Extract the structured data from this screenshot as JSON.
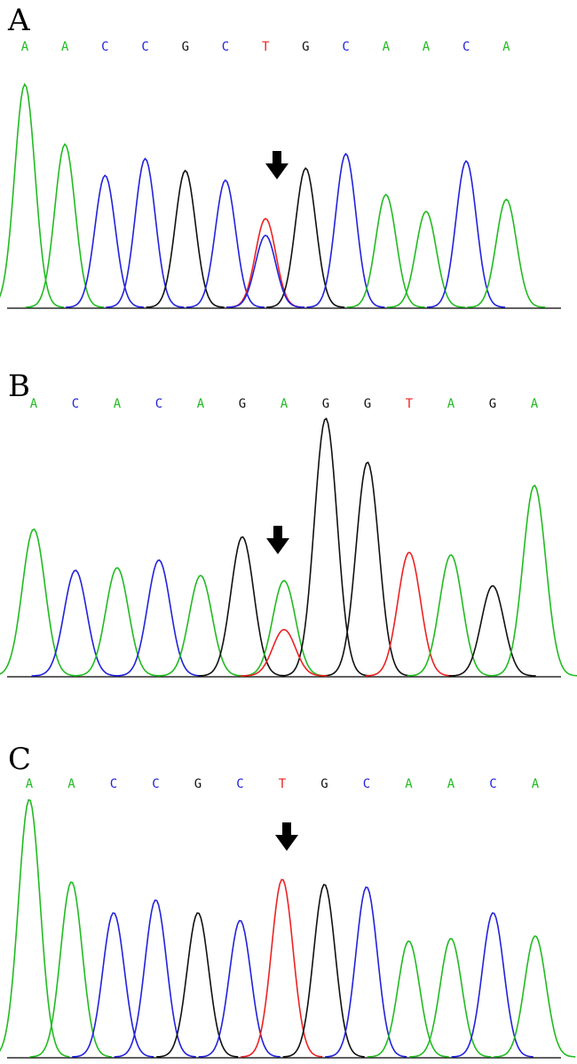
{
  "colors": {
    "A": "#22bb22",
    "C": "#2222dd",
    "G": "#111111",
    "T": "#ee2222"
  },
  "panels": [
    {
      "label": "A",
      "sequence": [
        "A",
        "A",
        "C",
        "C",
        "G",
        "C",
        "T",
        "G",
        "C",
        "A",
        "A",
        "C",
        "A"
      ],
      "mutation_index": 6,
      "peak_heights": [
        0.93,
        0.68,
        0.55,
        0.62,
        0.57,
        0.53,
        0.37,
        0.58,
        0.64,
        0.47,
        0.4,
        0.61,
        0.45
      ],
      "secondary_peak": {
        "base": "C",
        "index": 6,
        "height": 0.3
      }
    },
    {
      "label": "B",
      "sequence": [
        "A",
        "C",
        "A",
        "C",
        "A",
        "G",
        "A",
        "G",
        "G",
        "T",
        "A",
        "G",
        "A"
      ],
      "mutation_index": 6,
      "peak_heights": [
        0.57,
        0.41,
        0.42,
        0.45,
        0.39,
        0.54,
        0.37,
        1.0,
        0.83,
        0.48,
        0.47,
        0.35,
        0.74
      ],
      "secondary_peak": {
        "base": "T",
        "index": 6,
        "height": 0.18
      }
    },
    {
      "label": "C",
      "sequence": [
        "A",
        "A",
        "C",
        "C",
        "G",
        "C",
        "T",
        "G",
        "C",
        "A",
        "A",
        "C",
        "A"
      ],
      "mutation_index": 6,
      "peak_heights": [
        1.0,
        0.68,
        0.56,
        0.61,
        0.56,
        0.53,
        0.69,
        0.67,
        0.66,
        0.45,
        0.46,
        0.56,
        0.47
      ],
      "secondary_peak": null
    }
  ]
}
